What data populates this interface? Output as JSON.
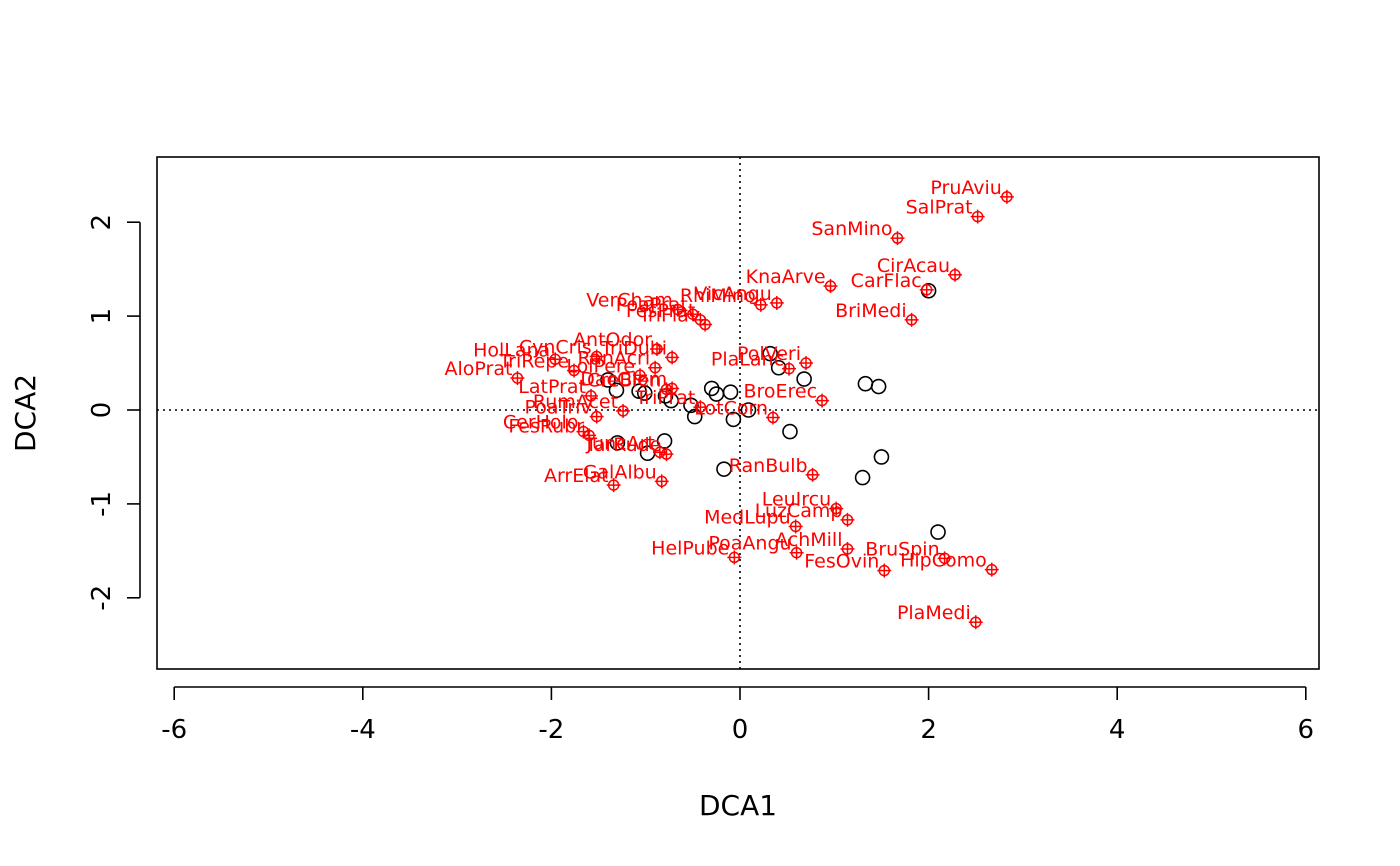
{
  "chart_data": {
    "type": "scatter",
    "xlabel": "DCA1",
    "ylabel": "DCA2",
    "xlim": [
      -6,
      6
    ],
    "ylim": [
      -2.5,
      2.5
    ],
    "x_ticks": [
      "-6",
      "-4",
      "-2",
      "0",
      "2",
      "4",
      "6"
    ],
    "y_ticks": [
      "-2",
      "-1",
      "0",
      "1",
      "2"
    ],
    "reference_lines": {
      "x": 0,
      "y": 0,
      "style": "dotted"
    },
    "colors": {
      "sites": "#000000",
      "species": "#ff0000"
    },
    "sites": [
      {
        "x": -1.4,
        "y": 0.32
      },
      {
        "x": -1.31,
        "y": 0.21
      },
      {
        "x": -1.07,
        "y": 0.2
      },
      {
        "x": -1.01,
        "y": 0.18
      },
      {
        "x": -0.79,
        "y": 0.15
      },
      {
        "x": -0.73,
        "y": 0.1
      },
      {
        "x": -0.52,
        "y": 0.05
      },
      {
        "x": -0.48,
        "y": -0.07
      },
      {
        "x": -0.3,
        "y": 0.23
      },
      {
        "x": -0.25,
        "y": 0.17
      },
      {
        "x": -0.1,
        "y": 0.19
      },
      {
        "x": -0.07,
        "y": -0.1
      },
      {
        "x": 0.09,
        "y": 0.0
      },
      {
        "x": 0.32,
        "y": 0.6
      },
      {
        "x": 0.41,
        "y": 0.45
      },
      {
        "x": 0.68,
        "y": 0.33
      },
      {
        "x": 0.53,
        "y": -0.23
      },
      {
        "x": 1.33,
        "y": 0.28
      },
      {
        "x": 1.47,
        "y": 0.25
      },
      {
        "x": 1.5,
        "y": -0.5
      },
      {
        "x": 1.3,
        "y": -0.72
      },
      {
        "x": 2.1,
        "y": -1.3
      },
      {
        "x": 2.0,
        "y": 1.27
      },
      {
        "x": -1.3,
        "y": -0.35
      },
      {
        "x": -0.98,
        "y": -0.46
      },
      {
        "x": -0.8,
        "y": -0.33
      },
      {
        "x": -0.17,
        "y": -0.63
      }
    ],
    "species": [
      {
        "label": "PruAviu",
        "x": 2.83,
        "y": 2.27
      },
      {
        "label": "SalPrat",
        "x": 2.52,
        "y": 2.06
      },
      {
        "label": "SanMino",
        "x": 1.67,
        "y": 1.83
      },
      {
        "label": "KnaArve",
        "x": 0.96,
        "y": 1.32
      },
      {
        "label": "CirAcau",
        "x": 2.28,
        "y": 1.44
      },
      {
        "label": "CarFlac",
        "x": 1.98,
        "y": 1.28
      },
      {
        "label": "BriMedi",
        "x": 1.82,
        "y": 0.96
      },
      {
        "label": "RhiMino",
        "x": 0.22,
        "y": 1.12
      },
      {
        "label": "VicAngu",
        "x": 0.39,
        "y": 1.14
      },
      {
        "label": "VerCham",
        "x": -0.66,
        "y": 1.07
      },
      {
        "label": "PoaPrat",
        "x": -0.5,
        "y": 1.02
      },
      {
        "label": "FesPrat",
        "x": -0.42,
        "y": 0.96
      },
      {
        "label": "TriFlav",
        "x": -0.37,
        "y": 0.91
      },
      {
        "label": "TriDubi",
        "x": -0.72,
        "y": 0.56
      },
      {
        "label": "AntOdor",
        "x": -0.88,
        "y": 0.65
      },
      {
        "label": "CynCris",
        "x": -1.52,
        "y": 0.57
      },
      {
        "label": "HolLana",
        "x": -1.96,
        "y": 0.54
      },
      {
        "label": "PolVeri",
        "x": 0.7,
        "y": 0.5
      },
      {
        "label": "PlaLanc",
        "x": 0.52,
        "y": 0.44
      },
      {
        "label": "RanAcri",
        "x": -0.9,
        "y": 0.45
      },
      {
        "label": "LolPere",
        "x": -1.06,
        "y": 0.37
      },
      {
        "label": "TriRepe",
        "x": -1.76,
        "y": 0.42
      },
      {
        "label": "AloPrat",
        "x": -2.36,
        "y": 0.34
      },
      {
        "label": "DacGlom",
        "x": -0.72,
        "y": 0.23
      },
      {
        "label": "CreBien",
        "x": -0.78,
        "y": 0.22
      },
      {
        "label": "TriPrat",
        "x": -0.42,
        "y": 0.03
      },
      {
        "label": "BroErec",
        "x": 0.87,
        "y": 0.1
      },
      {
        "label": "RumAcet",
        "x": -1.24,
        "y": -0.01
      },
      {
        "label": "LatPrat",
        "x": -1.58,
        "y": 0.15
      },
      {
        "label": "LotCorn",
        "x": 0.35,
        "y": -0.08
      },
      {
        "label": "PoaTriv",
        "x": -1.52,
        "y": -0.07
      },
      {
        "label": "FesRubr",
        "x": -1.6,
        "y": -0.27
      },
      {
        "label": "CerHolo",
        "x": -1.66,
        "y": -0.23
      },
      {
        "label": "JuncArt",
        "x": -0.85,
        "y": -0.45
      },
      {
        "label": "TarRude",
        "x": -0.78,
        "y": -0.47
      },
      {
        "label": "RanBulb",
        "x": 0.77,
        "y": -0.69
      },
      {
        "label": "ArrElat",
        "x": -1.34,
        "y": -0.8
      },
      {
        "label": "GalAlbu",
        "x": -0.83,
        "y": -0.76
      },
      {
        "label": "LeuIrcu",
        "x": 1.02,
        "y": -1.05
      },
      {
        "label": "LuzCamp",
        "x": 1.14,
        "y": -1.17
      },
      {
        "label": "MedLupu",
        "x": 0.59,
        "y": -1.24
      },
      {
        "label": "AchMill",
        "x": 1.14,
        "y": -1.48
      },
      {
        "label": "PoaAngu",
        "x": 0.6,
        "y": -1.52
      },
      {
        "label": "HelPube",
        "x": -0.06,
        "y": -1.57
      },
      {
        "label": "FesOvin",
        "x": 1.53,
        "y": -1.71
      },
      {
        "label": "BruSpin",
        "x": 2.17,
        "y": -1.58
      },
      {
        "label": "HipComo",
        "x": 2.67,
        "y": -1.7
      },
      {
        "label": "PlaMedi",
        "x": 2.5,
        "y": -2.26
      }
    ]
  }
}
